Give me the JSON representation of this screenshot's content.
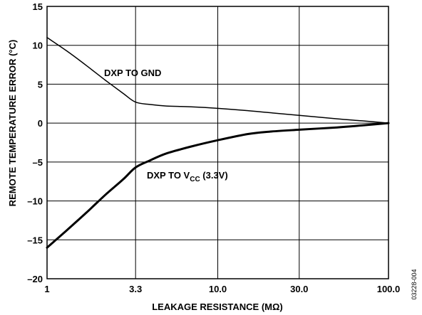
{
  "chart_data": {
    "type": "line",
    "title": "",
    "xlabel": "LEAKAGE RESISTANCE (MΩ)",
    "ylabel": "REMOTE TEMPERATURE ERROR (°C)",
    "xscale": "log",
    "xlim": [
      1,
      100
    ],
    "ylim": [
      -20,
      15
    ],
    "grid": true,
    "x_ticks": [
      1,
      3.3,
      10,
      30,
      100
    ],
    "x_tick_labels": [
      "1",
      "3.3",
      "10.0",
      "30.0",
      "100.0"
    ],
    "y_ticks": [
      15,
      10,
      5,
      0,
      -5,
      -10,
      -15,
      -20
    ],
    "y_tick_labels": [
      "15",
      "10",
      "5",
      "0",
      "–5",
      "–10",
      "–15",
      "–20"
    ],
    "series": [
      {
        "name": "DXP TO GND",
        "x": [
          1,
          1.3,
          1.7,
          2.2,
          2.8,
          3.3,
          4,
          5,
          7,
          10,
          15,
          20,
          30,
          50,
          70,
          100
        ],
        "y": [
          11,
          9.3,
          7.4,
          5.5,
          3.8,
          2.7,
          2.4,
          2.2,
          2.1,
          1.9,
          1.6,
          1.35,
          1.0,
          0.55,
          0.3,
          0
        ]
      },
      {
        "name": "DXP TO V_CC (3.3V)",
        "x": [
          1,
          1.3,
          1.7,
          2.2,
          2.8,
          3.3,
          4,
          5,
          7,
          10,
          15,
          20,
          30,
          50,
          70,
          100
        ],
        "y": [
          -16,
          -13.8,
          -11.5,
          -9.2,
          -7.2,
          -5.7,
          -4.8,
          -3.9,
          -3.0,
          -2.2,
          -1.4,
          -1.1,
          -0.85,
          -0.55,
          -0.3,
          0
        ]
      }
    ],
    "annotations": [
      {
        "text": "DXP TO GND"
      },
      {
        "main": "DXP TO V",
        "sub": "CC",
        "tail": " (3.3V)"
      }
    ]
  },
  "figure_code": "03228-004"
}
